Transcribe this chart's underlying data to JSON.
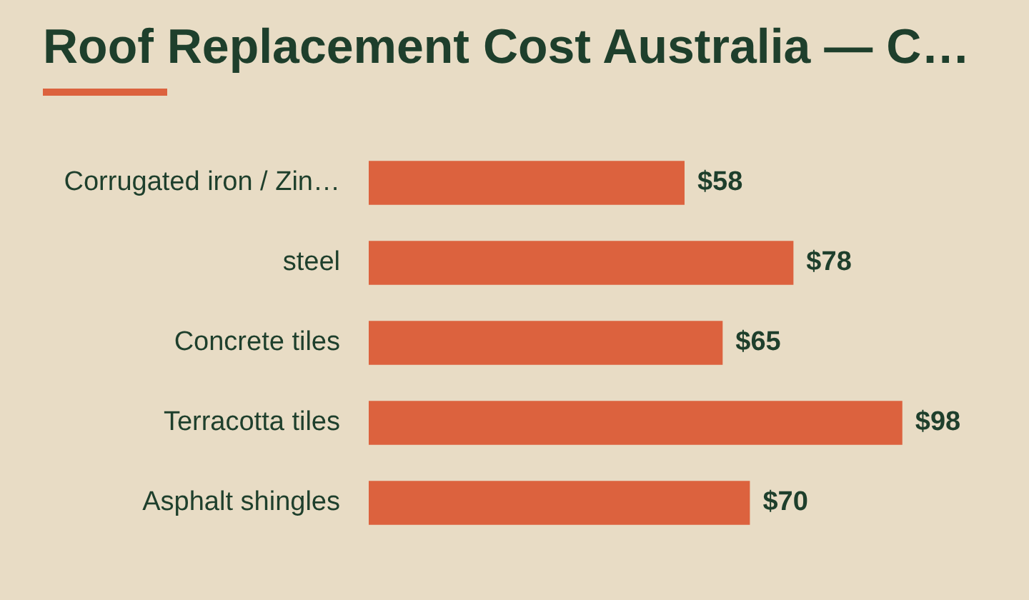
{
  "chart_data": {
    "type": "bar",
    "orientation": "horizontal",
    "title": "Roof Replacement Cost Australia — C…",
    "categories": [
      "Corrugated iron / Zin…",
      "steel",
      "Concrete tiles",
      "Terracotta tiles",
      "Asphalt shingles"
    ],
    "values": [
      58,
      78,
      65,
      98,
      70
    ],
    "color": "#dc623e",
    "value_labels": [
      "$58",
      "$78",
      "$65",
      "$98",
      "$70"
    ]
  }
}
